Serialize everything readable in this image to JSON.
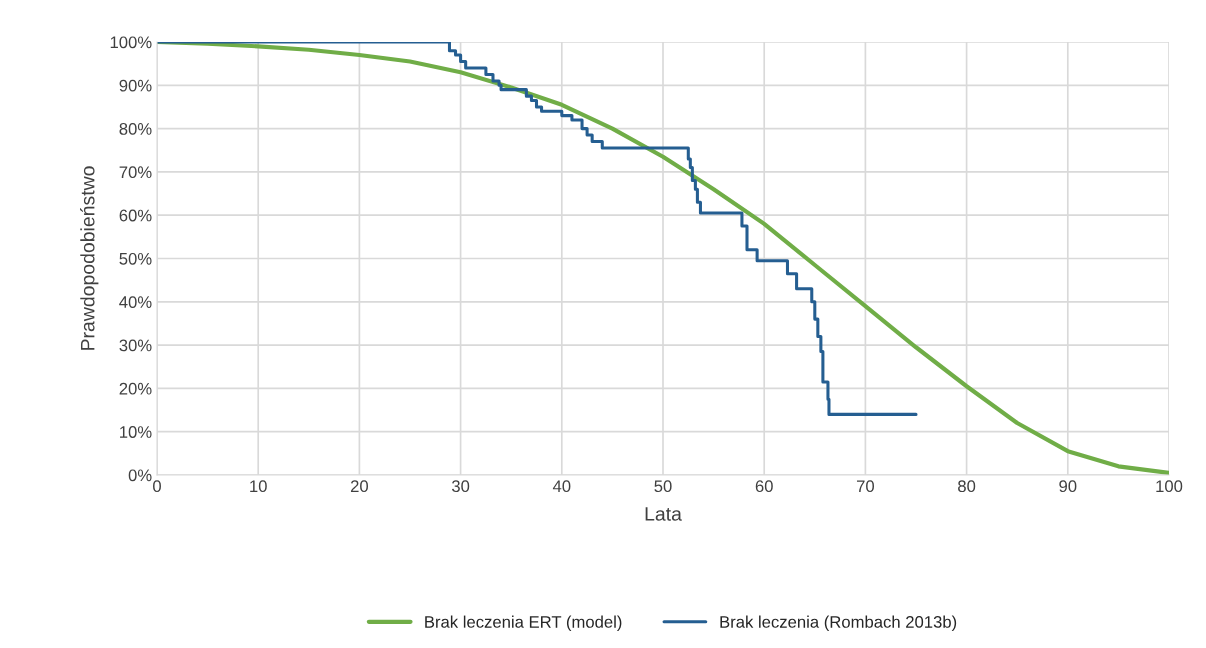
{
  "chart_data": {
    "type": "line",
    "xlabel": "Lata",
    "ylabel": "Prawdopodobieństwo",
    "xlim": [
      0,
      100
    ],
    "xticks": [
      0,
      10,
      20,
      30,
      40,
      50,
      60,
      70,
      80,
      90,
      100
    ],
    "ylim": [
      0,
      100
    ],
    "yticks": [
      {
        "value": 0,
        "label": "0%"
      },
      {
        "value": 10,
        "label": "10%"
      },
      {
        "value": 20,
        "label": "20%"
      },
      {
        "value": 30,
        "label": "30%"
      },
      {
        "value": 40,
        "label": "40%"
      },
      {
        "value": 50,
        "label": "50%"
      },
      {
        "value": 60,
        "label": "60%"
      },
      {
        "value": 70,
        "label": "70%"
      },
      {
        "value": 80,
        "label": "80%"
      },
      {
        "value": 90,
        "label": "90%"
      },
      {
        "value": 100,
        "label": "100%"
      }
    ],
    "grid": true,
    "legend": "bottom",
    "series": [
      {
        "name": "Brak leczenia ERT (model)",
        "color": "#70ad47",
        "x": [
          0,
          5,
          10,
          15,
          20,
          25,
          30,
          35,
          40,
          45,
          50,
          55,
          60,
          65,
          70,
          75,
          80,
          85,
          90,
          95,
          100
        ],
        "values": [
          100,
          99.6,
          99,
          98.2,
          97,
          95.5,
          93,
          89.5,
          85.5,
          80,
          73.5,
          66,
          58,
          48.5,
          39,
          29.5,
          20.5,
          12,
          5.5,
          2,
          0.5
        ]
      },
      {
        "name": "Brak leczenia (Rombach 2013b)",
        "color": "#255e91",
        "type": "step",
        "x": [
          0,
          28.9,
          29.5,
          30,
          30.5,
          32.5,
          33.2,
          33.8,
          34,
          36.5,
          37,
          37.5,
          38,
          40,
          41,
          42,
          42.5,
          43,
          44,
          52.5,
          52.7,
          52.9,
          53.2,
          53.4,
          53.7,
          57.8,
          58.3,
          59.3,
          62.3,
          63.2,
          64.7,
          65,
          65.3,
          65.6,
          65.8,
          66.3,
          66.4,
          75
        ],
        "values": [
          100,
          98,
          97,
          95.5,
          94,
          92.5,
          91,
          90,
          89,
          87.5,
          86.5,
          85,
          84,
          83,
          82,
          80,
          78.5,
          77,
          75.5,
          73,
          71,
          68,
          66,
          63,
          60.5,
          57.5,
          52,
          49.5,
          46.5,
          43,
          40,
          36,
          32,
          28.5,
          21.5,
          17.5,
          14,
          14
        ]
      }
    ]
  }
}
